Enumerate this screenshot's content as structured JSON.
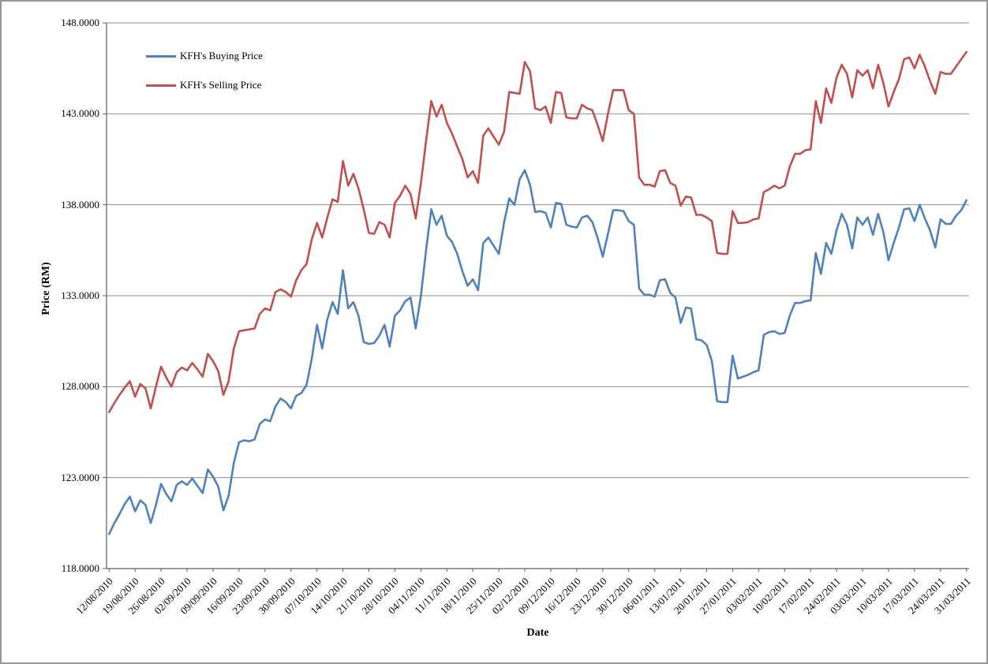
{
  "frame": {
    "border_color": "#979797",
    "background": "#ffffff"
  },
  "axes": {
    "y_title": "Price (RM)",
    "x_title": "Date",
    "y_tick_labels": [
      "148.0000",
      "143.0000",
      "138.0000",
      "133.0000",
      "128.0000",
      "123.0000",
      "118.0000"
    ],
    "grid_color": "#8e8e8e",
    "axis_color": "#5f5f5f"
  },
  "legend": {
    "items": [
      {
        "label": "KFH's Buying Price",
        "color": "#4F81BD"
      },
      {
        "label": "KFH's Selling  Price",
        "color": "#C0504D"
      }
    ]
  },
  "chart_data": {
    "type": "line",
    "title": "",
    "xlabel": "Date",
    "ylabel": "Price (RM)",
    "ylim": [
      118,
      148
    ],
    "y_ticks": [
      148,
      143,
      138,
      133,
      128,
      123,
      118
    ],
    "grid": true,
    "legend_position": "top-left-inside",
    "x_tick_labels": [
      "12/08/2010",
      "19/08/2010",
      "26/08/2010",
      "02/09/2010",
      "09/09/2010",
      "16/09/2010",
      "23/09/2010",
      "30/09/2010",
      "07/10/2010",
      "14/10/2010",
      "21/10/2010",
      "28/10/2010",
      "04/11/2010",
      "11/11/2010",
      "18/11/2010",
      "25/11/2010",
      "02/12/2010",
      "09/12/2010",
      "16/12/2010",
      "23/12/2010",
      "30/12/2010",
      "06/01/2011",
      "13/01/2011",
      "20/01/2011",
      "27/01/2011",
      "03/02/2011",
      "10/02/2011",
      "17/02/2011",
      "24/02/2011",
      "03/03/2011",
      "10/03/2011",
      "17/03/2011",
      "24/03/2011",
      "31/03/2011"
    ],
    "x_tick_every": 5,
    "series": [
      {
        "name": "KFH's Buying Price",
        "color": "#4F81BD",
        "values": [
          119.9,
          120.5,
          121.0,
          121.55,
          121.95,
          121.15,
          121.75,
          121.5,
          120.5,
          121.5,
          122.65,
          122.1,
          121.7,
          122.6,
          122.8,
          122.6,
          122.95,
          122.55,
          122.15,
          123.45,
          123.05,
          122.5,
          121.2,
          122.0,
          123.8,
          124.95,
          125.05,
          125.0,
          125.1,
          125.95,
          126.2,
          126.1,
          126.9,
          127.35,
          127.15,
          126.8,
          127.5,
          127.65,
          128.1,
          129.55,
          131.4,
          130.1,
          131.7,
          132.65,
          132.0,
          134.4,
          132.3,
          132.65,
          131.9,
          130.45,
          130.35,
          130.4,
          130.8,
          131.4,
          130.2,
          131.9,
          132.2,
          132.7,
          132.9,
          131.2,
          133.0,
          135.5,
          137.75,
          136.9,
          137.4,
          136.3,
          135.95,
          135.3,
          134.35,
          133.55,
          133.9,
          133.3,
          135.9,
          136.2,
          135.75,
          135.3,
          137.0,
          138.35,
          138.0,
          139.4,
          139.9,
          139.1,
          137.6,
          137.65,
          137.55,
          136.75,
          138.1,
          138.05,
          136.9,
          136.8,
          136.75,
          137.3,
          137.4,
          137.05,
          136.2,
          135.15,
          136.4,
          137.7,
          137.7,
          137.65,
          137.1,
          136.9,
          133.4,
          133.05,
          133.05,
          132.95,
          133.85,
          133.9,
          133.15,
          132.9,
          131.5,
          132.35,
          132.3,
          130.6,
          130.55,
          130.3,
          129.4,
          127.2,
          127.15,
          127.15,
          129.7,
          128.45,
          128.55,
          128.65,
          128.8,
          128.9,
          130.85,
          131.0,
          131.05,
          130.9,
          130.95,
          131.9,
          132.6,
          132.6,
          132.7,
          132.75,
          135.35,
          134.2,
          135.9,
          135.3,
          136.6,
          137.5,
          136.9,
          135.6,
          137.3,
          136.9,
          137.3,
          136.35,
          137.5,
          136.5,
          134.95,
          135.9,
          136.75,
          137.75,
          137.8,
          137.1,
          138.0,
          137.25,
          136.6,
          135.65,
          137.2,
          136.95,
          136.95,
          137.4,
          137.7,
          138.25
        ]
      },
      {
        "name": "KFH's Selling  Price",
        "color": "#C0504D",
        "values": [
          126.6,
          127.1,
          127.55,
          127.95,
          128.3,
          127.45,
          128.15,
          127.9,
          126.8,
          128.0,
          129.1,
          128.5,
          128.0,
          128.8,
          129.05,
          128.9,
          129.3,
          128.95,
          128.55,
          129.8,
          129.4,
          128.85,
          127.55,
          128.3,
          130.1,
          131.05,
          131.1,
          131.15,
          131.2,
          132.0,
          132.3,
          132.2,
          133.2,
          133.35,
          133.2,
          132.95,
          133.85,
          134.4,
          134.75,
          136.1,
          137.0,
          136.2,
          137.3,
          138.3,
          138.15,
          140.4,
          139.05,
          139.7,
          138.9,
          137.75,
          136.45,
          136.4,
          137.05,
          136.9,
          136.2,
          138.1,
          138.5,
          139.05,
          138.6,
          137.25,
          139.2,
          141.5,
          143.7,
          142.85,
          143.5,
          142.5,
          141.9,
          141.2,
          140.5,
          139.5,
          139.85,
          139.2,
          141.8,
          142.2,
          141.75,
          141.3,
          142.0,
          144.2,
          144.15,
          144.1,
          145.85,
          145.35,
          143.3,
          143.2,
          143.4,
          142.5,
          144.2,
          144.15,
          142.8,
          142.75,
          142.75,
          143.5,
          143.3,
          143.2,
          142.4,
          141.5,
          143.0,
          144.3,
          144.3,
          144.3,
          143.2,
          143.0,
          139.5,
          139.1,
          139.1,
          139.0,
          139.85,
          139.9,
          139.2,
          139.05,
          137.95,
          138.45,
          138.4,
          137.45,
          137.45,
          137.3,
          137.1,
          135.35,
          135.3,
          135.3,
          137.65,
          137.0,
          137.0,
          137.05,
          137.2,
          137.25,
          138.7,
          138.85,
          139.05,
          138.9,
          139.05,
          140.1,
          140.8,
          140.8,
          141.0,
          141.05,
          143.7,
          142.5,
          144.4,
          143.6,
          145.0,
          145.7,
          145.2,
          143.9,
          145.4,
          145.1,
          145.4,
          144.4,
          145.7,
          144.7,
          143.4,
          144.2,
          144.9,
          146.0,
          146.1,
          145.5,
          146.25,
          145.6,
          144.8,
          144.1,
          145.3,
          145.2,
          145.2,
          145.6,
          146.0,
          146.4
        ]
      }
    ]
  }
}
